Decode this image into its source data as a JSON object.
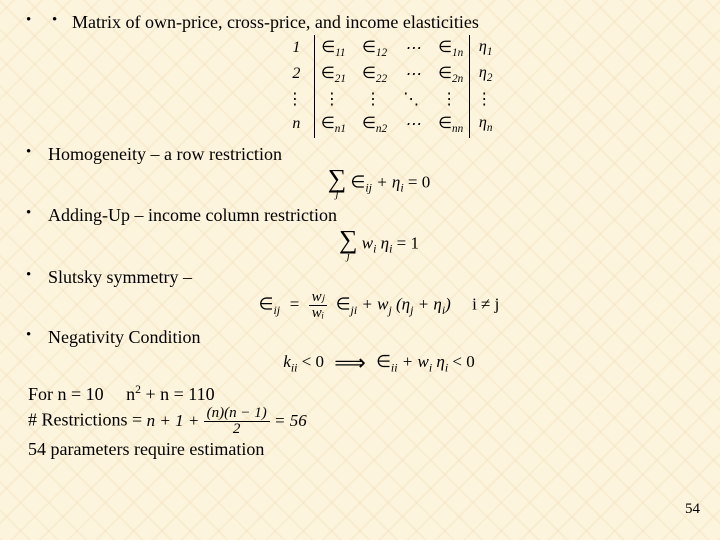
{
  "bullets": {
    "b1": "Matrix of own-price, cross-price, and income elasticities",
    "b2": "Homogeneity – a row restriction",
    "b3": "Adding-Up – income column restriction",
    "b4": "Slutsky symmetry –",
    "b5": "Negativity Condition"
  },
  "matrix": {
    "rows": [
      "1",
      "2",
      "⋮",
      "n"
    ],
    "cells": {
      "r1": [
        "∈₁₁",
        "∈₁₂",
        "⋯",
        "∈₁ₙ"
      ],
      "r2": [
        "∈₂₁",
        "∈₂₂",
        "⋯",
        "∈₂ₙ"
      ],
      "rd": [
        "⋮",
        "⋮",
        "⋱",
        "⋮"
      ],
      "rn": [
        "∈ₙ₁",
        "∈ₙ₂",
        "⋯",
        "∈ₙₙ"
      ]
    },
    "eta": [
      "η₁",
      "η₂",
      "⋮",
      "ηₙ"
    ]
  },
  "formulas": {
    "homogeneity": "∑ ∈ᵢⱼ + ηᵢ = 0",
    "addingup": "∑ wᵢ ηᵢ = 1",
    "slutsky_lhs": "∈ᵢⱼ",
    "slutsky_rhs": " ∈ⱼᵢ + wⱼ (ηⱼ + ηᵢ)",
    "slutsky_cond": "i ≠ j",
    "slutsky_frac_num": "wⱼ",
    "slutsky_frac_den": "wᵢ",
    "neg_lhs": "kᵢᵢ < 0",
    "neg_rhs": "∈ᵢᵢ + wᵢ ηᵢ < 0"
  },
  "footer": {
    "line1a": "For n = 10",
    "line1b": "n",
    "line1c": " + n = 110",
    "line1_sup": "2",
    "line2a": "# Restrictions = ",
    "line2_frac_num": "(n)(n − 1)",
    "line2_frac_den": "2",
    "line2b": " = 56",
    "line2_pre": "n + 1 + ",
    "line3": "54 parameters require estimation"
  },
  "page": "54",
  "colors": {
    "bg": "#fdf4dd",
    "text": "#000000"
  }
}
